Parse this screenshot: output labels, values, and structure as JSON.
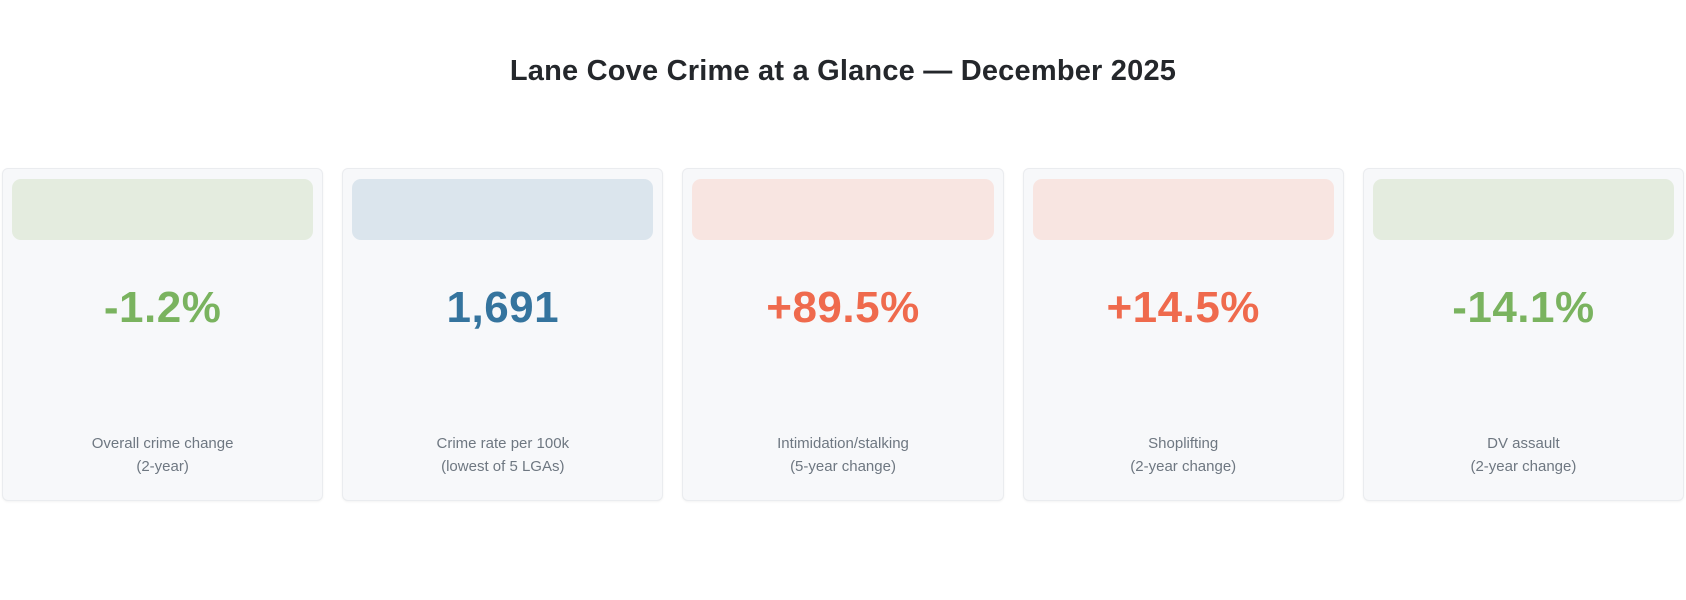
{
  "title": "Lane Cove Crime at a Glance — December 2025",
  "colors": {
    "value_green": "#7ab35f",
    "value_blue": "#35749e",
    "value_orange": "#ef6a4d",
    "band_green": "#e4ecdf",
    "band_blue": "#dbe5ed",
    "band_pink": "#f8e5e1",
    "card_background": "#f7f8fa",
    "label_gray": "#6e7781",
    "title_dark": "#24272b"
  },
  "cards": [
    {
      "value": "-1.2%",
      "label_line1": "Overall crime change",
      "label_line2": "(2-year)",
      "tone": "green"
    },
    {
      "value": "1,691",
      "label_line1": "Crime rate per 100k",
      "label_line2": "(lowest of 5 LGAs)",
      "tone": "blue"
    },
    {
      "value": "+89.5%",
      "label_line1": "Intimidation/stalking",
      "label_line2": "(5-year change)",
      "tone": "red"
    },
    {
      "value": "+14.5%",
      "label_line1": "Shoplifting",
      "label_line2": "(2-year change)",
      "tone": "red"
    },
    {
      "value": "-14.1%",
      "label_line1": "DV assault",
      "label_line2": "(2-year change)",
      "tone": "green"
    }
  ],
  "chart_data": {
    "type": "table",
    "title": "Lane Cove Crime at a Glance — December 2025",
    "metrics": [
      {
        "label": "Overall crime change (2-year)",
        "display": "-1.2%",
        "value": -1.2,
        "unit": "%"
      },
      {
        "label": "Crime rate per 100k (lowest of 5 LGAs)",
        "display": "1,691",
        "value": 1691,
        "unit": "per 100k"
      },
      {
        "label": "Intimidation/stalking (5-year change)",
        "display": "+89.5%",
        "value": 89.5,
        "unit": "%"
      },
      {
        "label": "Shoplifting (2-year change)",
        "display": "+14.5%",
        "value": 14.5,
        "unit": "%"
      },
      {
        "label": "DV assault (2-year change)",
        "display": "-14.1%",
        "value": -14.1,
        "unit": "%"
      }
    ]
  }
}
